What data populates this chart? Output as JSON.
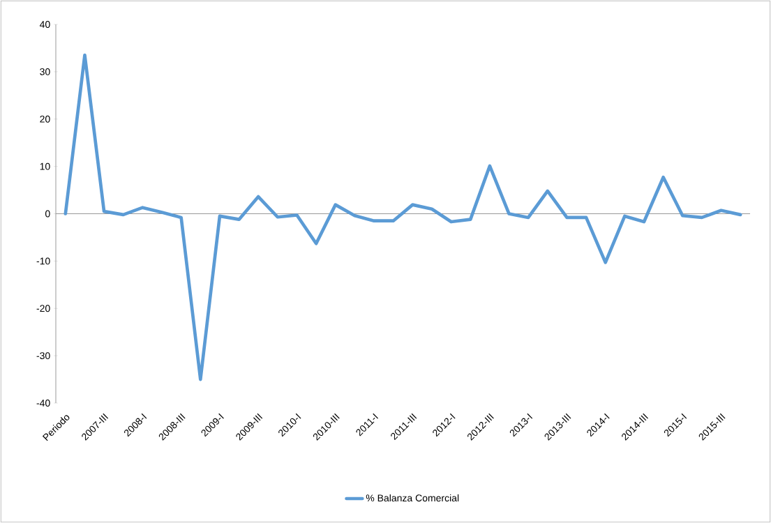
{
  "chart_data": {
    "type": "line",
    "categories": [
      "Periodo",
      null,
      "2007-III",
      null,
      "2008-I",
      null,
      "2008-III",
      null,
      "2009-I",
      null,
      "2009-III",
      null,
      "2010-I",
      null,
      "2010-III",
      null,
      "2011-I",
      null,
      "2011-III",
      null,
      "2012-I",
      null,
      "2012-III",
      null,
      "2013-I",
      null,
      "2013-III",
      null,
      "2014-I",
      null,
      "2014-III",
      null,
      "2015-I",
      null,
      "2015-III",
      null
    ],
    "series": [
      {
        "name": "% Balanza Comercial",
        "color": "#5b9bd5",
        "values": [
          0,
          33.5,
          0.5,
          -0.2,
          1.3,
          0.3,
          -0.8,
          -35,
          -0.5,
          -1.2,
          3.6,
          -0.7,
          -0.3,
          -6.3,
          1.9,
          -0.4,
          -1.5,
          -1.5,
          1.9,
          1.0,
          -1.7,
          -1.2,
          10.1,
          0,
          -0.8,
          4.8,
          -0.8,
          -0.8,
          -10.3,
          -0.5,
          -1.7,
          7.7,
          -0.4,
          -0.8,
          0.7,
          -0.2
        ]
      }
    ],
    "ylim": [
      -40,
      40
    ],
    "yticks": [
      -40,
      -30,
      -20,
      -10,
      0,
      10,
      20,
      30,
      40
    ],
    "legend": "bottom",
    "marker": "none",
    "line_style": "solid"
  }
}
